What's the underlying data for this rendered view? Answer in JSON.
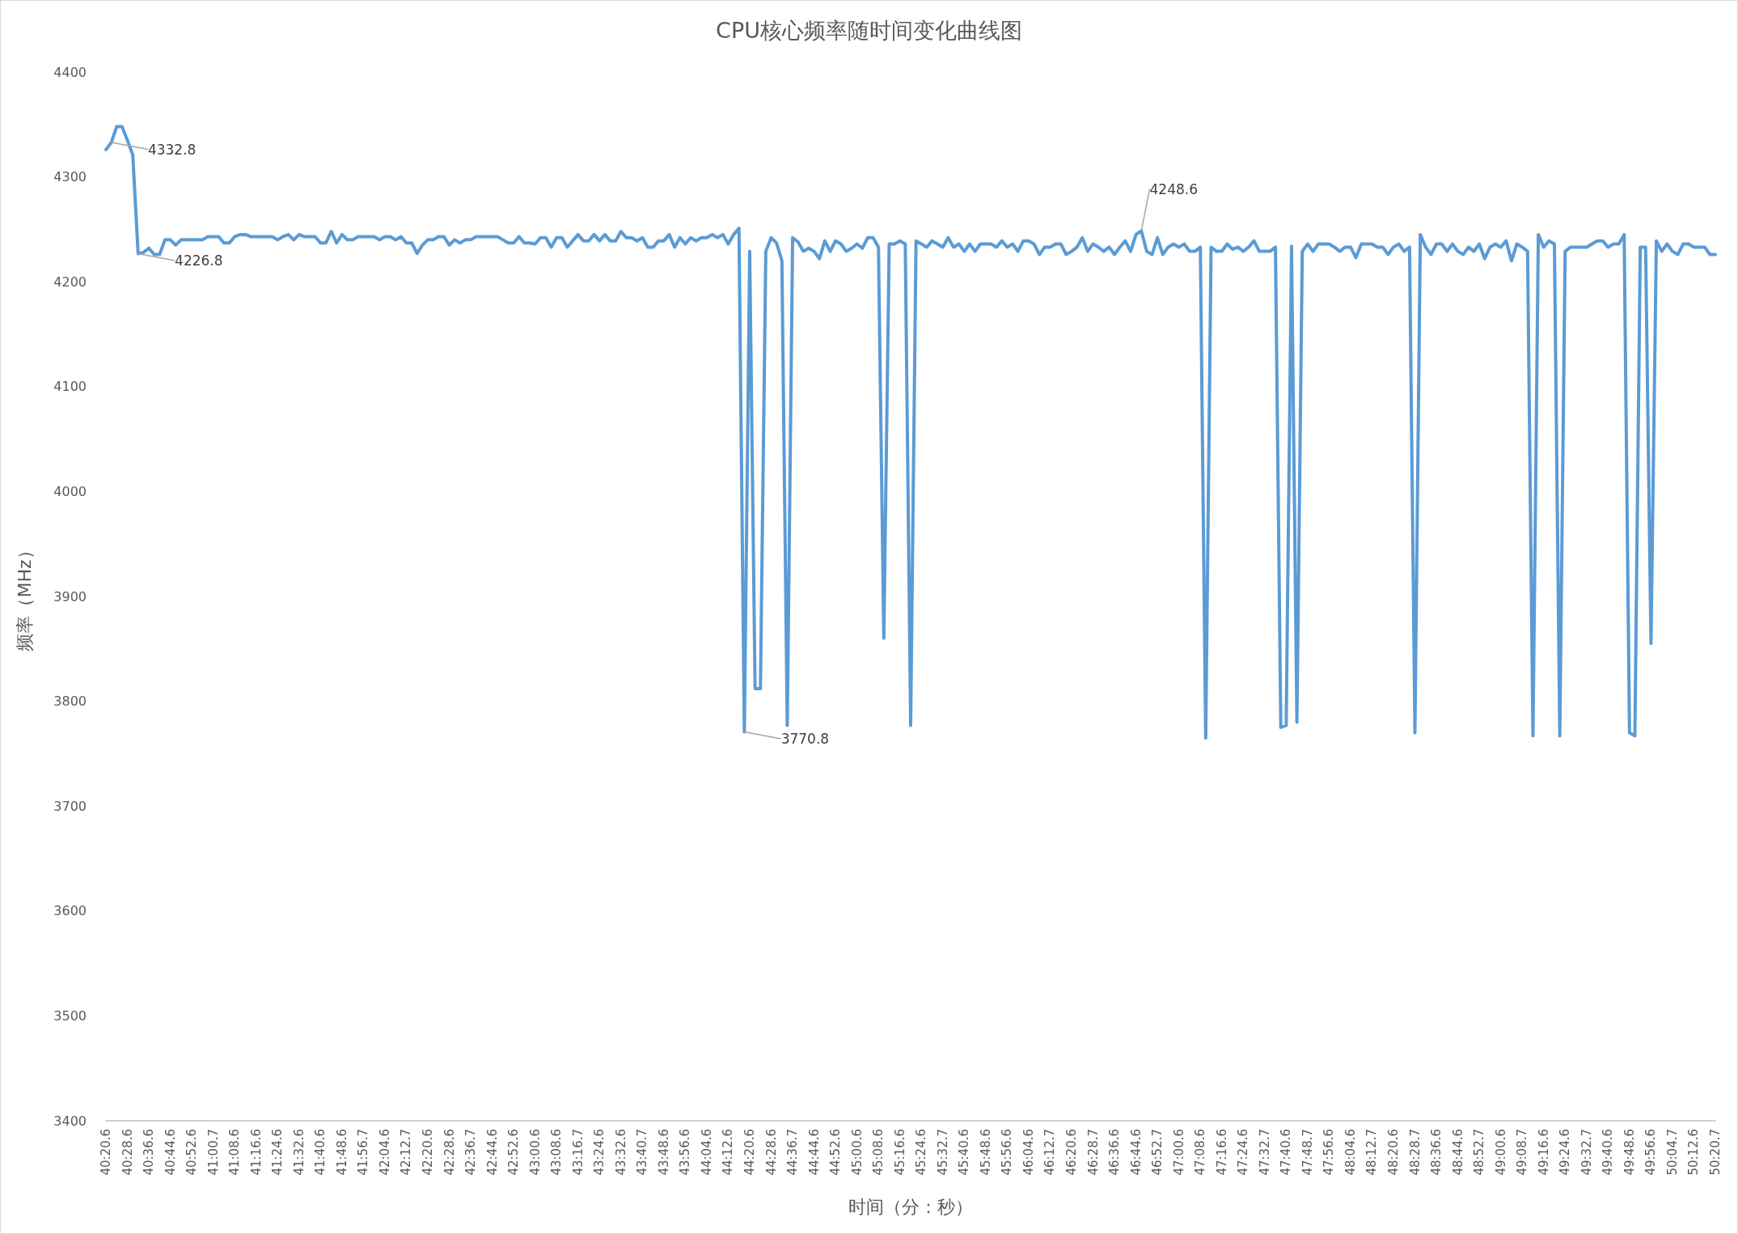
{
  "chart_data": {
    "type": "line",
    "title": "CPU核心频率随时间变化曲线图",
    "xlabel": "时间（分：秒）",
    "ylabel": "频率（MHz）",
    "categories": [
      "40:20.6",
      null,
      null,
      null,
      "40:28.6",
      null,
      null,
      null,
      "40:36.6",
      null,
      null,
      null,
      "40:44.6",
      null,
      null,
      null,
      "40:52.6",
      null,
      null,
      null,
      "41:00.7",
      null,
      null,
      null,
      "41:08.6",
      null,
      null,
      null,
      "41:16.6",
      null,
      null,
      null,
      "41:24.6",
      null,
      null,
      null,
      "41:32.6",
      null,
      null,
      null,
      "41:40.6",
      null,
      null,
      null,
      "41:48.6",
      null,
      null,
      null,
      "41:56.7",
      null,
      null,
      null,
      "42:04.6",
      null,
      null,
      null,
      "42:12.7",
      null,
      null,
      null,
      "42:20.6",
      null,
      null,
      null,
      "42:28.6",
      null,
      null,
      null,
      "42:36.7",
      null,
      null,
      null,
      "42:44.6",
      null,
      null,
      null,
      "42:52.6",
      null,
      null,
      null,
      "43:00.6",
      null,
      null,
      null,
      "43:08.6",
      null,
      null,
      null,
      "43:16.7",
      null,
      null,
      null,
      "43:24.6",
      null,
      null,
      null,
      "43:32.6",
      null,
      null,
      null,
      "43:40.7",
      null,
      null,
      null,
      "43:48.6",
      null,
      null,
      null,
      "43:56.6",
      null,
      null,
      null,
      "44:04.6",
      null,
      null,
      null,
      "44:12.6",
      null,
      null,
      null,
      "44:20.6",
      null,
      null,
      null,
      "44:28.6",
      null,
      null,
      null,
      "44:36.7",
      null,
      null,
      null,
      "44:44.6",
      null,
      null,
      null,
      "44:52.6",
      null,
      null,
      null,
      "45:00.6",
      null,
      null,
      null,
      "45:08.6",
      null,
      null,
      null,
      "45:16.6",
      null,
      null,
      null,
      "45:24.6",
      null,
      null,
      null,
      "45:32.7",
      null,
      null,
      null,
      "45:40.6",
      null,
      null,
      null,
      "45:48.6",
      null,
      null,
      null,
      "45:56.6",
      null,
      null,
      null,
      "46:04.6",
      null,
      null,
      null,
      "46:12.7",
      null,
      null,
      null,
      "46:20.6",
      null,
      null,
      null,
      "46:28.7",
      null,
      null,
      null,
      "46:36.6",
      null,
      null,
      null,
      "46:44.6",
      null,
      null,
      null,
      "46:52.7",
      null,
      null,
      null,
      "47:00.6",
      null,
      null,
      null,
      "47:08.6",
      null,
      null,
      null,
      "47:16.6",
      null,
      null,
      null,
      "47:24.6",
      null,
      null,
      null,
      "47:32.7",
      null,
      null,
      null,
      "47:40.6",
      null,
      null,
      null,
      "47:48.7",
      null,
      null,
      null,
      "47:56.6",
      null,
      null,
      null,
      "48:04.6",
      null,
      null,
      null,
      "48:12.7",
      null,
      null,
      null,
      "48:20.6",
      null,
      null,
      null,
      "48:28.7",
      null,
      null,
      null,
      "48:36.6",
      null,
      null,
      null,
      "48:44.6",
      null,
      null,
      null,
      "48:52.7",
      null,
      null,
      null,
      "49:00.6",
      null,
      null,
      null,
      "49:08.7",
      null,
      null,
      null,
      "49:16.6",
      null,
      null,
      null,
      "49:24.6",
      null,
      null,
      null,
      "49:32.7",
      null,
      null,
      null,
      "49:40.6",
      null,
      null,
      null,
      "49:48.6",
      null,
      null,
      null,
      "49:56.6",
      null,
      null,
      null,
      "50:04.7",
      null,
      null,
      null,
      "50:12.6",
      null,
      null,
      null,
      "50:20.7"
    ],
    "series": [
      {
        "color": "#5b9bd5",
        "values": [
          4326,
          4332.8,
          4348,
          4348,
          4335,
          4321,
          4226.8,
          4228,
          4232,
          4226,
          4226,
          4240,
          4240,
          4235,
          4240,
          4240,
          4240,
          4240,
          4240,
          4243,
          4243,
          4243,
          4237,
          4237,
          4243,
          4245,
          4245,
          4243,
          4243,
          4243,
          4243,
          4243,
          4240,
          4243,
          4245,
          4240,
          4245,
          4243,
          4243,
          4243,
          4237,
          4237,
          4248,
          4237,
          4245,
          4240,
          4240,
          4243,
          4243,
          4243,
          4243,
          4240,
          4243,
          4243,
          4240,
          4243,
          4237,
          4237,
          4227,
          4235,
          4240,
          4240,
          4243,
          4243,
          4235,
          4240,
          4237,
          4240,
          4240,
          4243,
          4243,
          4243,
          4243,
          4243,
          4240,
          4237,
          4237,
          4243,
          4237,
          4237,
          4236,
          4242,
          4242,
          4233,
          4242,
          4242,
          4233,
          4239,
          4245,
          4239,
          4239,
          4245,
          4239,
          4245,
          4239,
          4239,
          4248,
          4242,
          4242,
          4239,
          4242,
          4233,
          4233,
          4239,
          4239,
          4245,
          4233,
          4242,
          4236,
          4242,
          4239,
          4242,
          4242,
          4245,
          4242,
          4245,
          4236,
          4245,
          4251,
          3770.8,
          4229,
          3812,
          3812,
          4229,
          4242,
          4237,
          4220,
          3777,
          4242,
          4238,
          4229,
          4232,
          4229,
          4222,
          4239,
          4229,
          4239,
          4236,
          4229,
          4232,
          4236,
          4232,
          4242,
          4242,
          4233,
          3860,
          4236,
          4236,
          4239,
          4236,
          3777,
          4239,
          4236,
          4233,
          4239,
          4236,
          4233,
          4242,
          4233,
          4236,
          4229,
          4236,
          4229,
          4236,
          4236,
          4236,
          4233,
          4239,
          4233,
          4236,
          4229,
          4239,
          4239,
          4236,
          4226,
          4233,
          4233,
          4236,
          4236,
          4226,
          4229,
          4233,
          4242,
          4229,
          4236,
          4233,
          4229,
          4233,
          4226,
          4233,
          4239,
          4229,
          4245,
          4248.6,
          4229,
          4226,
          4242,
          4226,
          4233,
          4236,
          4233,
          4236,
          4229,
          4229,
          4233,
          3765,
          4233,
          4229,
          4229,
          4236,
          4231,
          4233,
          4229,
          4233,
          4239,
          4229,
          4229,
          4229,
          4233,
          3775,
          3777,
          4234,
          3780,
          4229,
          4236,
          4229,
          4236,
          4236,
          4236,
          4233,
          4229,
          4233,
          4233,
          4223,
          4236,
          4236,
          4236,
          4233,
          4233,
          4226,
          4233,
          4236,
          4229,
          4233,
          3770,
          4245,
          4233,
          4226,
          4236,
          4236,
          4229,
          4236,
          4229,
          4226,
          4233,
          4229,
          4236,
          4222,
          4233,
          4236,
          4233,
          4239,
          4220,
          4236,
          4233,
          4229,
          3767,
          4245,
          4233,
          4239,
          4236,
          3767,
          4229,
          4233,
          4233,
          4233,
          4233,
          4236,
          4239,
          4239,
          4233,
          4236,
          4236,
          4245,
          3770,
          3767,
          4233,
          4233,
          3855,
          4239,
          4229,
          4236,
          4229,
          4226,
          4236,
          4236,
          4233,
          4233,
          4233,
          4226,
          4226
        ],
        "value_labels": [
          null,
          "4332.8",
          null,
          null,
          null,
          null,
          "4226.8",
          null,
          null,
          null,
          null,
          null,
          null,
          null,
          null,
          null,
          null,
          null,
          null,
          null,
          null,
          null,
          null,
          null,
          null,
          null,
          null,
          null,
          null,
          null,
          null,
          null,
          null,
          null,
          null,
          null,
          null,
          null,
          null,
          null,
          null,
          null,
          null,
          null,
          null,
          null,
          null,
          null,
          null,
          null,
          null,
          null,
          null,
          null,
          null,
          null,
          null,
          null,
          null,
          null,
          null,
          null,
          null,
          null,
          null,
          null,
          null,
          null,
          null,
          null,
          null,
          null,
          null,
          null,
          null,
          null,
          null,
          null,
          null,
          null,
          null,
          null,
          null,
          null,
          null,
          null,
          null,
          null,
          null,
          null,
          null,
          null,
          null,
          null,
          null,
          null,
          null,
          null,
          null,
          null,
          null,
          null,
          null,
          null,
          null,
          null,
          null,
          null,
          null,
          null,
          null,
          null,
          null,
          null,
          null,
          null,
          null,
          null,
          null,
          "3770.8",
          null,
          null,
          null,
          null,
          null,
          null,
          null,
          null,
          null,
          null,
          null,
          null,
          null,
          null,
          null,
          null,
          null,
          null,
          null,
          null,
          null,
          null,
          null,
          null,
          null,
          null,
          null,
          null,
          null,
          null,
          null,
          null,
          null,
          null,
          null,
          null,
          null,
          null,
          null,
          null,
          null,
          null,
          null,
          null,
          null,
          null,
          null,
          null,
          null,
          null,
          null,
          null,
          null,
          null,
          null,
          null,
          null,
          null,
          null,
          null,
          null,
          null,
          null,
          null,
          null,
          null,
          null,
          null,
          null,
          null,
          null,
          null,
          null,
          "4248.6",
          null,
          null,
          null,
          null,
          null,
          null,
          null,
          null,
          null,
          null,
          null,
          null,
          null,
          null,
          null,
          null,
          null,
          null,
          null,
          null,
          null,
          null,
          null,
          null,
          null,
          null,
          null,
          null,
          null,
          null,
          null,
          null,
          null,
          null,
          null,
          null,
          null,
          null,
          null,
          null,
          null,
          null,
          null,
          null,
          null,
          null,
          null,
          null,
          null,
          null,
          null,
          null,
          null,
          null,
          null,
          null,
          null,
          null,
          null,
          null,
          null,
          null,
          null,
          null,
          null,
          null,
          null,
          null,
          null,
          null,
          null,
          null,
          null,
          null,
          null,
          null,
          null,
          null,
          null,
          null,
          null,
          null,
          null,
          null,
          null,
          null,
          null,
          null,
          null,
          null,
          null,
          null,
          null,
          null,
          null,
          null,
          null,
          null,
          null,
          null,
          null,
          null,
          null,
          null,
          null,
          null,
          null
        ]
      }
    ],
    "ylim": [
      3400,
      4400
    ],
    "yticks": [
      3400,
      3500,
      3600,
      3700,
      3800,
      3900,
      4000,
      4100,
      4200,
      4300,
      4400
    ],
    "grid": false,
    "marker": "none",
    "line_style": "solid"
  }
}
